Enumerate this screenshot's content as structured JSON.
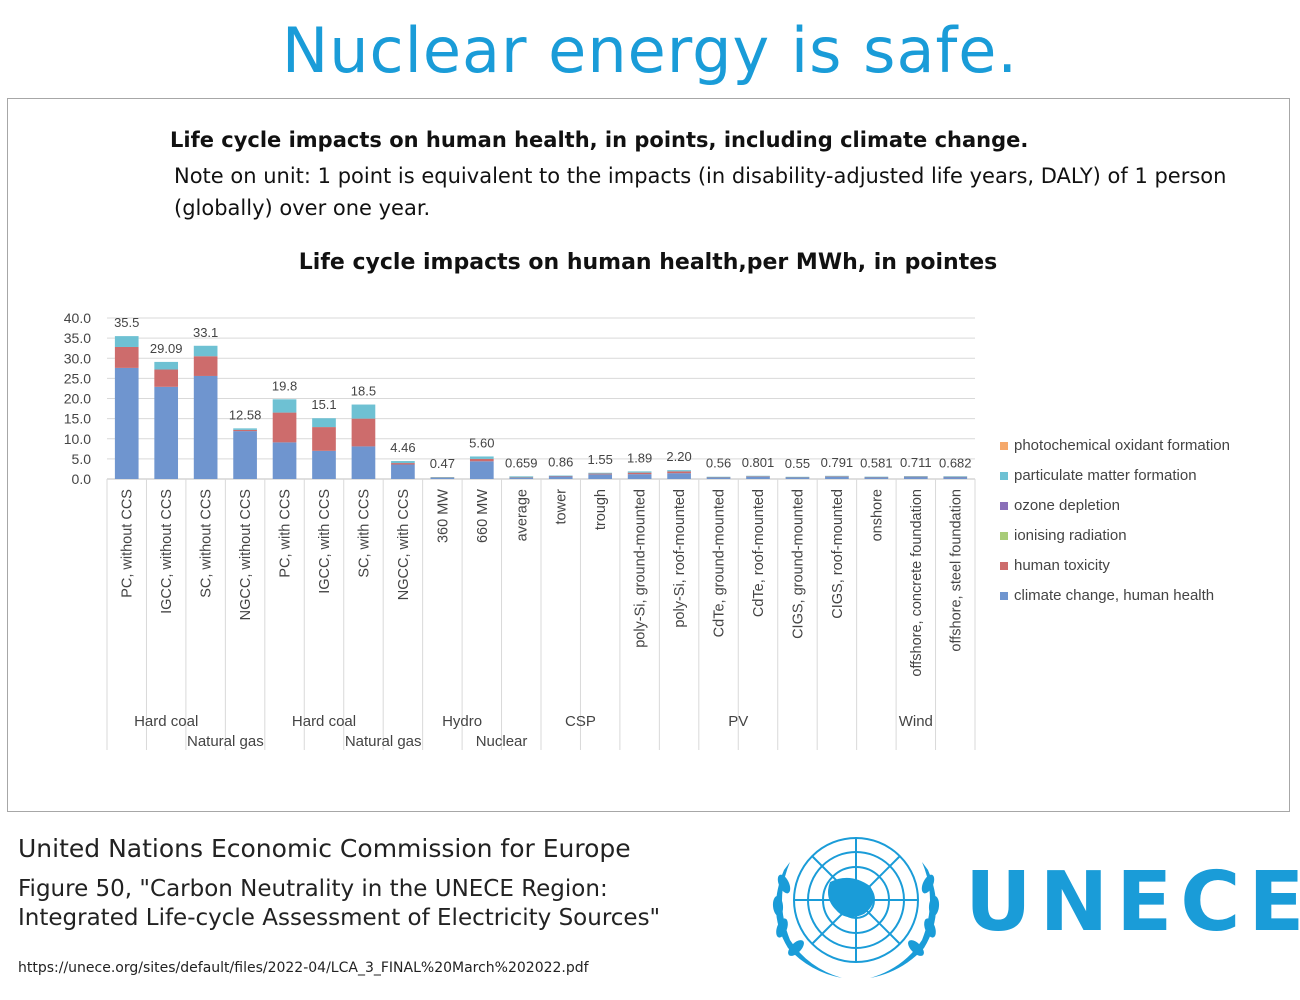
{
  "page": {
    "title": "Nuclear energy is safe.",
    "heading": "Life cycle impacts on human health, in points, including climate change.",
    "note": "Note on unit: 1 point is equivalent to the impacts (in disability-adjusted life years, DALY) of 1 person (globally) over one year."
  },
  "colors": {
    "title": "#1a9cd8",
    "climate": "#6f95cf",
    "toxicity": "#cd6c6c",
    "ionising": "#a8cc78",
    "ozone": "#8a6fb8",
    "particulate": "#6ec1d3",
    "photochemical": "#f5a86b"
  },
  "chart_data": {
    "type": "bar",
    "stacked": true,
    "title": "Life cycle impacts on human health,per MWh, in pointes",
    "ylim": [
      0,
      40
    ],
    "yticks": [
      "0.0",
      "5.0",
      "10.0",
      "15.0",
      "20.0",
      "25.0",
      "30.0",
      "35.0",
      "40.0"
    ],
    "grid": true,
    "legend_position": "right",
    "categories": [
      "PC, without CCS",
      "IGCC, without CCS",
      "SC, without CCS",
      "NGCC, without CCS",
      "PC, with CCS",
      "IGCC, with CCS",
      "SC, with CCS",
      "NGCC, with CCS",
      "360 MW",
      "660 MW",
      "average",
      "tower",
      "trough",
      "poly-Si, ground-mounted",
      "poly-Si, roof-mounted",
      "CdTe, ground-mounted",
      "CdTe, roof-mounted",
      "CIGS, ground-mounted",
      "CIGS, roof-mounted",
      "onshore",
      "offshore, concrete foundation",
      "offshore, steel foundation"
    ],
    "total_labels": [
      "35.5",
      "29.09",
      "33.1",
      "12.58",
      "19.8",
      "15.1",
      "18.5",
      "4.46",
      "0.47",
      "5.60",
      "0.659",
      "0.86",
      "1.55",
      "1.89",
      "2.20",
      "0.56",
      "0.801",
      "0.55",
      "0.791",
      "0.581",
      "0.711",
      "0.682"
    ],
    "groups": [
      {
        "label": "Hard coal",
        "row": 1
      },
      {
        "label": "Natural gas",
        "row": 2
      },
      {
        "label": "Hard coal",
        "row": 1
      },
      {
        "label": "Natural gas",
        "row": 2
      },
      {
        "label": "Hydro",
        "row": 1
      },
      {
        "label": "Nuclear",
        "row": 2
      },
      {
        "label": "CSP",
        "row": 1
      },
      {
        "label": "PV",
        "row": 1
      },
      {
        "label": "Wind",
        "row": 1
      }
    ],
    "group_ranges": [
      [
        0,
        2
      ],
      [
        3,
        3
      ],
      [
        4,
        6
      ],
      [
        7,
        7
      ],
      [
        8,
        9
      ],
      [
        10,
        10
      ],
      [
        11,
        12
      ],
      [
        13,
        18
      ],
      [
        19,
        21
      ]
    ],
    "series": [
      {
        "name": "climate change, human health",
        "color": "#6f95cf",
        "values": [
          27.6,
          22.9,
          25.6,
          11.9,
          9.1,
          7.0,
          8.1,
          3.6,
          0.3,
          4.4,
          0.43,
          0.62,
          1.15,
          1.2,
          1.45,
          0.4,
          0.58,
          0.4,
          0.57,
          0.42,
          0.52,
          0.5
        ]
      },
      {
        "name": "human toxicity",
        "color": "#cd6c6c",
        "values": [
          5.2,
          4.3,
          4.9,
          0.3,
          7.4,
          5.9,
          6.9,
          0.36,
          0.1,
          0.6,
          0.14,
          0.14,
          0.2,
          0.38,
          0.45,
          0.08,
          0.12,
          0.08,
          0.12,
          0.09,
          0.1,
          0.1
        ]
      },
      {
        "name": "ionising radiation",
        "color": "#a8cc78",
        "values": [
          0,
          0,
          0,
          0,
          0,
          0,
          0,
          0,
          0,
          0,
          0.03,
          0,
          0,
          0,
          0,
          0,
          0,
          0,
          0,
          0,
          0,
          0
        ]
      },
      {
        "name": "ozone depletion",
        "color": "#8a6fb8",
        "values": [
          0,
          0,
          0,
          0,
          0,
          0,
          0,
          0,
          0,
          0,
          0,
          0,
          0,
          0,
          0,
          0,
          0,
          0,
          0,
          0,
          0,
          0
        ]
      },
      {
        "name": "particulate matter formation",
        "color": "#6ec1d3",
        "values": [
          2.7,
          1.89,
          2.6,
          0.38,
          3.3,
          2.2,
          3.5,
          0.5,
          0.07,
          0.6,
          0.059,
          0.1,
          0.2,
          0.31,
          0.3,
          0.08,
          0.101,
          0.07,
          0.101,
          0.071,
          0.091,
          0.082
        ]
      },
      {
        "name": "photochemical oxidant formation",
        "color": "#f5a86b",
        "values": [
          0,
          0,
          0,
          0,
          0,
          0,
          0,
          0,
          0,
          0,
          0,
          0,
          0,
          0,
          0,
          0,
          0,
          0,
          0,
          0,
          0,
          0
        ]
      }
    ],
    "legend_order": [
      "photochemical oxidant formation",
      "particulate matter formation",
      "ozone depletion",
      "ionising radiation",
      "human toxicity",
      "climate change, human health"
    ]
  },
  "footer": {
    "org": "United Nations Economic Commission for Europe",
    "citation_line1": "Figure 50, \"Carbon Neutrality in the UNECE Region:",
    "citation_line2": "Integrated Life-cycle Assessment of Electricity Sources\"",
    "url": "https://unece.org/sites/default/files/2022-04/LCA_3_FINAL%20March%202022.pdf",
    "logo_text": "UNECE"
  }
}
